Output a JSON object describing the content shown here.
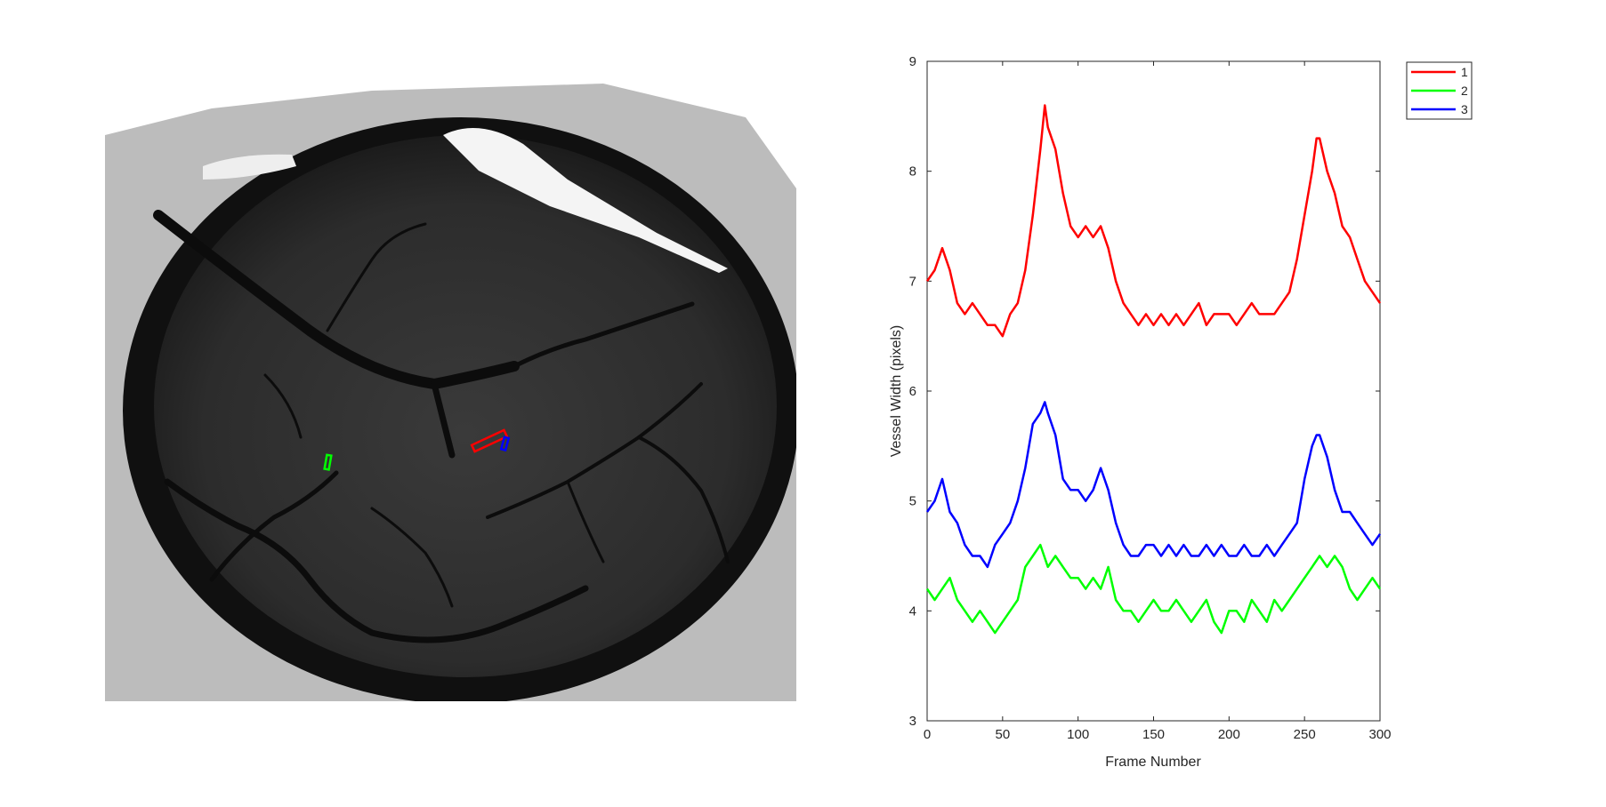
{
  "colors": {
    "background": "#ffffff",
    "axis": "#262626",
    "series1": "#ff0000",
    "series2": "#00ff00",
    "series3": "#0000ff"
  },
  "image_panel": {
    "description_icon": "brain-vessel-microscopy-image",
    "roi_markers": [
      {
        "label": "1",
        "color": "#ff0000"
      },
      {
        "label": "2",
        "color": "#00ff00"
      },
      {
        "label": "3",
        "color": "#0000ff"
      }
    ]
  },
  "chart_data": {
    "type": "line",
    "title": "",
    "xlabel": "Frame Number",
    "ylabel": "Vessel Width (pixels)",
    "xlim": [
      0,
      300
    ],
    "ylim": [
      3,
      9
    ],
    "xticks": [
      0,
      50,
      100,
      150,
      200,
      250,
      300
    ],
    "yticks": [
      3,
      4,
      5,
      6,
      7,
      8,
      9
    ],
    "grid": false,
    "legend_position": "outside-top-right",
    "series": [
      {
        "name": "1",
        "color": "#ff0000",
        "x": [
          0,
          5,
          10,
          15,
          20,
          25,
          30,
          35,
          40,
          45,
          50,
          55,
          60,
          65,
          70,
          75,
          78,
          80,
          85,
          90,
          95,
          100,
          105,
          110,
          115,
          120,
          125,
          130,
          135,
          140,
          145,
          150,
          155,
          160,
          165,
          170,
          175,
          180,
          185,
          190,
          195,
          200,
          205,
          210,
          215,
          220,
          225,
          230,
          235,
          240,
          245,
          250,
          255,
          258,
          260,
          265,
          270,
          275,
          280,
          285,
          290,
          295,
          300
        ],
        "y": [
          7.0,
          7.1,
          7.3,
          7.1,
          6.8,
          6.7,
          6.8,
          6.7,
          6.6,
          6.6,
          6.5,
          6.7,
          6.8,
          7.1,
          7.6,
          8.2,
          8.6,
          8.4,
          8.2,
          7.8,
          7.5,
          7.4,
          7.5,
          7.4,
          7.5,
          7.3,
          7.0,
          6.8,
          6.7,
          6.6,
          6.7,
          6.6,
          6.7,
          6.6,
          6.7,
          6.6,
          6.7,
          6.8,
          6.6,
          6.7,
          6.7,
          6.7,
          6.6,
          6.7,
          6.8,
          6.7,
          6.7,
          6.7,
          6.8,
          6.9,
          7.2,
          7.6,
          8.0,
          8.3,
          8.3,
          8.0,
          7.8,
          7.5,
          7.4,
          7.2,
          7.0,
          6.9,
          6.8
        ]
      },
      {
        "name": "2",
        "color": "#00ff00",
        "x": [
          0,
          5,
          10,
          15,
          20,
          25,
          30,
          35,
          40,
          45,
          50,
          55,
          60,
          65,
          70,
          75,
          80,
          85,
          90,
          95,
          100,
          105,
          110,
          115,
          120,
          125,
          130,
          135,
          140,
          145,
          150,
          155,
          160,
          165,
          170,
          175,
          180,
          185,
          190,
          195,
          200,
          205,
          210,
          215,
          220,
          225,
          230,
          235,
          240,
          245,
          250,
          255,
          260,
          265,
          270,
          275,
          280,
          285,
          290,
          295,
          300
        ],
        "y": [
          4.2,
          4.1,
          4.2,
          4.3,
          4.1,
          4.0,
          3.9,
          4.0,
          3.9,
          3.8,
          3.9,
          4.0,
          4.1,
          4.4,
          4.5,
          4.6,
          4.4,
          4.5,
          4.4,
          4.3,
          4.3,
          4.2,
          4.3,
          4.2,
          4.4,
          4.1,
          4.0,
          4.0,
          3.9,
          4.0,
          4.1,
          4.0,
          4.0,
          4.1,
          4.0,
          3.9,
          4.0,
          4.1,
          3.9,
          3.8,
          4.0,
          4.0,
          3.9,
          4.1,
          4.0,
          3.9,
          4.1,
          4.0,
          4.1,
          4.2,
          4.3,
          4.4,
          4.5,
          4.4,
          4.5,
          4.4,
          4.2,
          4.1,
          4.2,
          4.3,
          4.2
        ]
      },
      {
        "name": "3",
        "color": "#0000ff",
        "x": [
          0,
          5,
          10,
          15,
          20,
          25,
          30,
          35,
          40,
          45,
          50,
          55,
          60,
          65,
          70,
          75,
          78,
          80,
          85,
          90,
          95,
          100,
          105,
          110,
          115,
          120,
          125,
          130,
          135,
          140,
          145,
          150,
          155,
          160,
          165,
          170,
          175,
          180,
          185,
          190,
          195,
          200,
          205,
          210,
          215,
          220,
          225,
          230,
          235,
          240,
          245,
          250,
          255,
          258,
          260,
          265,
          270,
          275,
          280,
          285,
          290,
          295,
          300
        ],
        "y": [
          4.9,
          5.0,
          5.2,
          4.9,
          4.8,
          4.6,
          4.5,
          4.5,
          4.4,
          4.6,
          4.7,
          4.8,
          5.0,
          5.3,
          5.7,
          5.8,
          5.9,
          5.8,
          5.6,
          5.2,
          5.1,
          5.1,
          5.0,
          5.1,
          5.3,
          5.1,
          4.8,
          4.6,
          4.5,
          4.5,
          4.6,
          4.6,
          4.5,
          4.6,
          4.5,
          4.6,
          4.5,
          4.5,
          4.6,
          4.5,
          4.6,
          4.5,
          4.5,
          4.6,
          4.5,
          4.5,
          4.6,
          4.5,
          4.6,
          4.7,
          4.8,
          5.2,
          5.5,
          5.6,
          5.6,
          5.4,
          5.1,
          4.9,
          4.9,
          4.8,
          4.7,
          4.6,
          4.7
        ]
      }
    ]
  }
}
